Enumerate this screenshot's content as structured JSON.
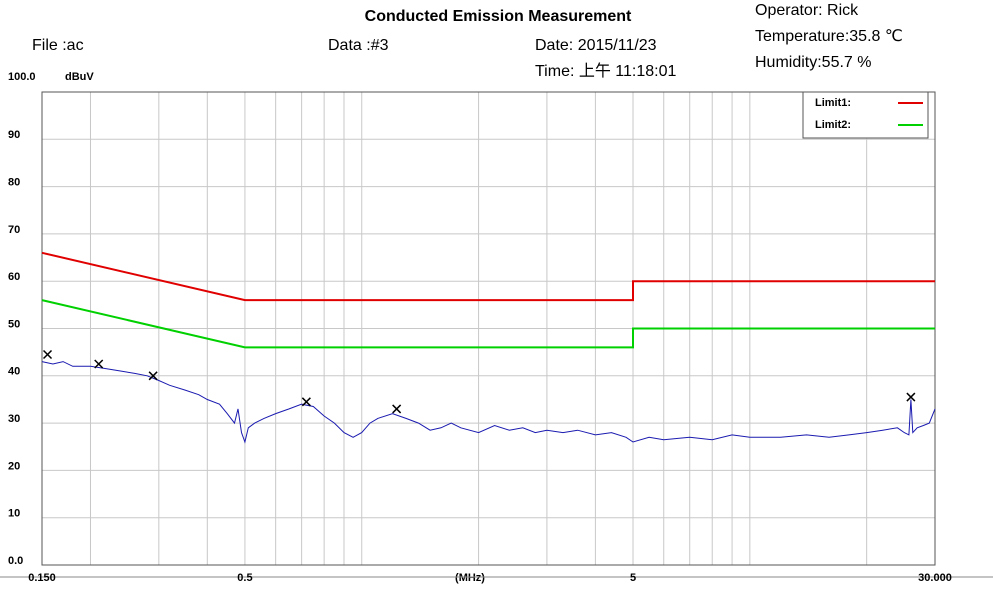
{
  "chart_data": {
    "type": "line",
    "title": "Conducted Emission Measurement",
    "file": "File :ac",
    "data_label": "Data :#3",
    "date": "Date: 2015/11/23",
    "time": "Time: 上午 11:18:01",
    "operator": "Operator:  Rick",
    "temperature": "Temperature:35.8 ℃",
    "humidity": "Humidity:55.7 %",
    "ylabel": "dBuV",
    "xlabel": "(MHz)",
    "xscale": "log",
    "xlim": [
      0.15,
      30
    ],
    "xticks": [
      {
        "value": 0.15,
        "label": "0.150"
      },
      0.5,
      5,
      {
        "value": 30,
        "label": "30.000"
      }
    ],
    "xgrid": [
      0.2,
      0.3,
      0.4,
      0.6,
      0.7,
      0.8,
      0.9,
      1,
      2,
      3,
      4,
      6,
      7,
      8,
      9,
      10,
      20
    ],
    "ylim": [
      0,
      100
    ],
    "yticks": [
      {
        "value": 0,
        "label": "0.0"
      },
      10,
      20,
      30,
      40,
      50,
      60,
      70,
      80,
      90,
      {
        "value": 100,
        "label": "100.0"
      }
    ],
    "grid": true,
    "legend": "upper right",
    "series": [
      {
        "name": "Limit1:",
        "color": "#e00000",
        "x": [
          0.15,
          0.5,
          5,
          5,
          30
        ],
        "values": [
          66,
          56,
          56,
          60,
          60
        ]
      },
      {
        "name": "Limit2:",
        "color": "#00d000",
        "x": [
          0.15,
          0.5,
          5,
          5,
          30
        ],
        "values": [
          56,
          46,
          46,
          50,
          50
        ]
      },
      {
        "color": "#1a1ab0",
        "x": [
          0.15,
          0.16,
          0.17,
          0.18,
          0.2,
          0.22,
          0.24,
          0.26,
          0.28,
          0.3,
          0.32,
          0.35,
          0.38,
          0.4,
          0.43,
          0.45,
          0.47,
          0.48,
          0.49,
          0.5,
          0.51,
          0.53,
          0.56,
          0.6,
          0.65,
          0.7,
          0.75,
          0.8,
          0.85,
          0.9,
          0.95,
          1.0,
          1.05,
          1.1,
          1.2,
          1.3,
          1.4,
          1.5,
          1.6,
          1.7,
          1.8,
          2.0,
          2.2,
          2.4,
          2.6,
          2.8,
          3.0,
          3.3,
          3.6,
          4.0,
          4.4,
          4.8,
          5.0,
          5.5,
          6,
          7,
          8,
          9,
          10,
          12,
          14,
          16,
          18,
          20,
          22,
          24,
          25,
          25.7,
          26,
          26.3,
          27,
          28,
          29,
          30
        ],
        "values": [
          43,
          42.5,
          43,
          42,
          42,
          41.5,
          41,
          40.5,
          40,
          39,
          38,
          37,
          36,
          35,
          34,
          32,
          30,
          33,
          28,
          26,
          29,
          30,
          31,
          32,
          33,
          34,
          33.5,
          31.5,
          30,
          28,
          27,
          28,
          30,
          31,
          32,
          31,
          30,
          28.5,
          29,
          30,
          29,
          28,
          29.5,
          28.5,
          29,
          28,
          28.5,
          28,
          28.5,
          27.5,
          28,
          27,
          26,
          27,
          26.5,
          27,
          26.5,
          27.5,
          27,
          27,
          27.5,
          27,
          27.5,
          28,
          28.5,
          29,
          28,
          27.5,
          35,
          28,
          29,
          29.5,
          30,
          33
        ]
      },
      {
        "marker": "x",
        "color": "#000000",
        "x": [
          0.155,
          0.21,
          0.29,
          0.72,
          1.23,
          26
        ],
        "values": [
          44.5,
          42.5,
          40,
          34.5,
          33,
          35.5
        ]
      }
    ]
  }
}
